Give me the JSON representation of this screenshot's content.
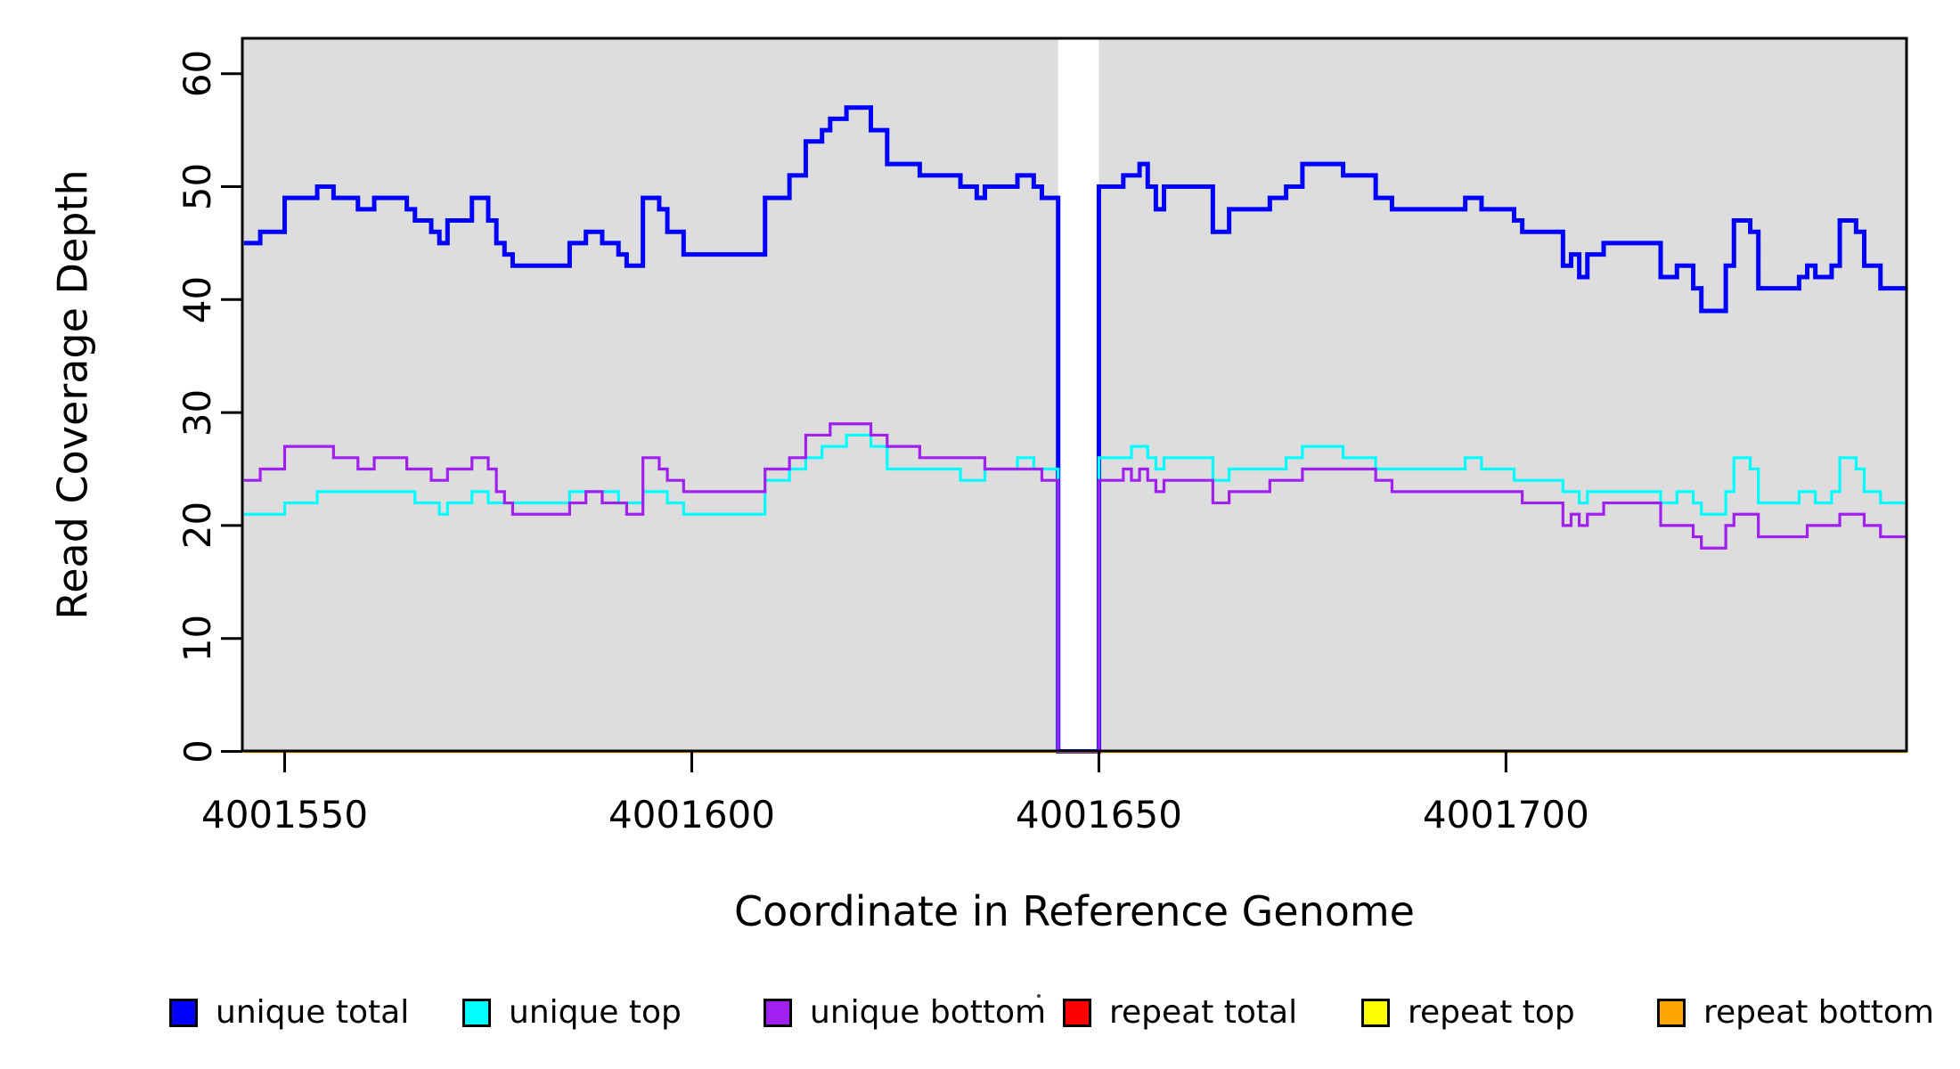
{
  "chart_data": {
    "type": "line",
    "subtype": "step-coverage",
    "xlabel": "Coordinate in Reference Genome",
    "ylabel": "Read Coverage Depth",
    "xlim": [
      4001544.8,
      4001749.2
    ],
    "ylim": [
      0,
      63.1
    ],
    "x_ticks": [
      4001550,
      4001600,
      4001650,
      4001700
    ],
    "y_ticks": [
      0,
      10,
      20,
      30,
      40,
      50,
      60
    ],
    "grid": false,
    "plot_bg": "#DDDDDD",
    "axis_color": "#000000",
    "gap_region": {
      "start": 4001645,
      "end": 4001650,
      "color": "#FFFFFF"
    },
    "legend_position": "bottom",
    "series": [
      {
        "name": "unique total",
        "color": "#0000FF",
        "line_width": 5,
        "points": [
          [
            4001545,
            45
          ],
          [
            4001547,
            46
          ],
          [
            4001550,
            49
          ],
          [
            4001554,
            50
          ],
          [
            4001556,
            49
          ],
          [
            4001559,
            48
          ],
          [
            4001561,
            49
          ],
          [
            4001565,
            48
          ],
          [
            4001566,
            47
          ],
          [
            4001568,
            46
          ],
          [
            4001569,
            45
          ],
          [
            4001570,
            47
          ],
          [
            4001573,
            49
          ],
          [
            4001575,
            47
          ],
          [
            4001576,
            45
          ],
          [
            4001577,
            44
          ],
          [
            4001578,
            43
          ],
          [
            4001585,
            45
          ],
          [
            4001587,
            46
          ],
          [
            4001589,
            45
          ],
          [
            4001591,
            44
          ],
          [
            4001592,
            43
          ],
          [
            4001594,
            49
          ],
          [
            4001596,
            48
          ],
          [
            4001597,
            46
          ],
          [
            4001599,
            44
          ],
          [
            4001609,
            49
          ],
          [
            4001612,
            51
          ],
          [
            4001614,
            54
          ],
          [
            4001616,
            55
          ],
          [
            4001617,
            56
          ],
          [
            4001619,
            57
          ],
          [
            4001622,
            55
          ],
          [
            4001624,
            52
          ],
          [
            4001628,
            51
          ],
          [
            4001633,
            50
          ],
          [
            4001635,
            49
          ],
          [
            4001636,
            50
          ],
          [
            4001640,
            51
          ],
          [
            4001642,
            50
          ],
          [
            4001643,
            49
          ],
          [
            4001645,
            0
          ],
          [
            4001650,
            50
          ],
          [
            4001653,
            51
          ],
          [
            4001655,
            52
          ],
          [
            4001656,
            50
          ],
          [
            4001657,
            48
          ],
          [
            4001658,
            50
          ],
          [
            4001664,
            46
          ],
          [
            4001666,
            48
          ],
          [
            4001671,
            49
          ],
          [
            4001673,
            50
          ],
          [
            4001675,
            52
          ],
          [
            4001680,
            51
          ],
          [
            4001684,
            49
          ],
          [
            4001686,
            48
          ],
          [
            4001695,
            49
          ],
          [
            4001697,
            48
          ],
          [
            4001701,
            47
          ],
          [
            4001702,
            46
          ],
          [
            4001707,
            43
          ],
          [
            4001708,
            44
          ],
          [
            4001709,
            42
          ],
          [
            4001710,
            44
          ],
          [
            4001712,
            45
          ],
          [
            4001719,
            42
          ],
          [
            4001721,
            43
          ],
          [
            4001723,
            41
          ],
          [
            4001724,
            39
          ],
          [
            4001727,
            43
          ],
          [
            4001728,
            47
          ],
          [
            4001730,
            46
          ],
          [
            4001731,
            41
          ],
          [
            4001736,
            42
          ],
          [
            4001737,
            43
          ],
          [
            4001738,
            42
          ],
          [
            4001740,
            43
          ],
          [
            4001741,
            47
          ],
          [
            4001743,
            46
          ],
          [
            4001744,
            43
          ],
          [
            4001746,
            41
          ]
        ]
      },
      {
        "name": "unique top",
        "color": "#00FFFF",
        "line_width": 3.2,
        "points": [
          [
            4001545,
            21
          ],
          [
            4001550,
            22
          ],
          [
            4001554,
            23
          ],
          [
            4001566,
            22
          ],
          [
            4001569,
            21
          ],
          [
            4001570,
            22
          ],
          [
            4001573,
            23
          ],
          [
            4001575,
            22
          ],
          [
            4001585,
            23
          ],
          [
            4001591,
            22
          ],
          [
            4001594,
            23
          ],
          [
            4001597,
            22
          ],
          [
            4001599,
            21
          ],
          [
            4001609,
            24
          ],
          [
            4001612,
            25
          ],
          [
            4001614,
            26
          ],
          [
            4001616,
            27
          ],
          [
            4001619,
            28
          ],
          [
            4001622,
            27
          ],
          [
            4001624,
            25
          ],
          [
            4001633,
            24
          ],
          [
            4001636,
            25
          ],
          [
            4001640,
            26
          ],
          [
            4001642,
            25
          ],
          [
            4001645,
            0
          ],
          [
            4001650,
            26
          ],
          [
            4001654,
            27
          ],
          [
            4001656,
            26
          ],
          [
            4001657,
            25
          ],
          [
            4001658,
            26
          ],
          [
            4001664,
            24
          ],
          [
            4001666,
            25
          ],
          [
            4001673,
            26
          ],
          [
            4001675,
            27
          ],
          [
            4001680,
            26
          ],
          [
            4001684,
            25
          ],
          [
            4001695,
            26
          ],
          [
            4001697,
            25
          ],
          [
            4001701,
            24
          ],
          [
            4001707,
            23
          ],
          [
            4001709,
            22
          ],
          [
            4001710,
            23
          ],
          [
            4001719,
            22
          ],
          [
            4001721,
            23
          ],
          [
            4001723,
            22
          ],
          [
            4001724,
            21
          ],
          [
            4001727,
            23
          ],
          [
            4001728,
            26
          ],
          [
            4001730,
            25
          ],
          [
            4001731,
            22
          ],
          [
            4001736,
            23
          ],
          [
            4001738,
            22
          ],
          [
            4001740,
            23
          ],
          [
            4001741,
            26
          ],
          [
            4001743,
            25
          ],
          [
            4001744,
            23
          ],
          [
            4001746,
            22
          ]
        ]
      },
      {
        "name": "unique bottom",
        "color": "#A020F0",
        "line_width": 3.2,
        "points": [
          [
            4001545,
            24
          ],
          [
            4001547,
            25
          ],
          [
            4001550,
            27
          ],
          [
            4001556,
            26
          ],
          [
            4001559,
            25
          ],
          [
            4001561,
            26
          ],
          [
            4001565,
            25
          ],
          [
            4001568,
            24
          ],
          [
            4001570,
            25
          ],
          [
            4001573,
            26
          ],
          [
            4001575,
            25
          ],
          [
            4001576,
            23
          ],
          [
            4001577,
            22
          ],
          [
            4001578,
            21
          ],
          [
            4001585,
            22
          ],
          [
            4001587,
            23
          ],
          [
            4001589,
            22
          ],
          [
            4001592,
            21
          ],
          [
            4001594,
            26
          ],
          [
            4001596,
            25
          ],
          [
            4001597,
            24
          ],
          [
            4001599,
            23
          ],
          [
            4001609,
            25
          ],
          [
            4001612,
            26
          ],
          [
            4001614,
            28
          ],
          [
            4001617,
            29
          ],
          [
            4001622,
            28
          ],
          [
            4001624,
            27
          ],
          [
            4001628,
            26
          ],
          [
            4001636,
            25
          ],
          [
            4001643,
            24
          ],
          [
            4001645,
            0
          ],
          [
            4001650,
            24
          ],
          [
            4001653,
            25
          ],
          [
            4001654,
            24
          ],
          [
            4001655,
            25
          ],
          [
            4001656,
            24
          ],
          [
            4001657,
            23
          ],
          [
            4001658,
            24
          ],
          [
            4001664,
            22
          ],
          [
            4001666,
            23
          ],
          [
            4001671,
            24
          ],
          [
            4001675,
            25
          ],
          [
            4001684,
            24
          ],
          [
            4001686,
            23
          ],
          [
            4001702,
            22
          ],
          [
            4001707,
            20
          ],
          [
            4001708,
            21
          ],
          [
            4001709,
            20
          ],
          [
            4001710,
            21
          ],
          [
            4001712,
            22
          ],
          [
            4001719,
            20
          ],
          [
            4001723,
            19
          ],
          [
            4001724,
            18
          ],
          [
            4001727,
            20
          ],
          [
            4001728,
            21
          ],
          [
            4001731,
            19
          ],
          [
            4001737,
            20
          ],
          [
            4001741,
            21
          ],
          [
            4001744,
            20
          ],
          [
            4001746,
            19
          ]
        ]
      },
      {
        "name": "repeat total",
        "color": "#FF0000",
        "line_width": 3,
        "points": [
          [
            4001545,
            0
          ]
        ]
      },
      {
        "name": "repeat top",
        "color": "#FFFF00",
        "line_width": 3,
        "points": [
          [
            4001545,
            0
          ]
        ]
      },
      {
        "name": "repeat bottom",
        "color": "#FFA500",
        "line_width": 3.6,
        "points": [
          [
            4001545,
            0
          ]
        ]
      }
    ],
    "legend": [
      {
        "label": "unique total",
        "color": "#0000FF"
      },
      {
        "label": "unique top",
        "color": "#00FFFF"
      },
      {
        "label": "unique bottom",
        "color": "#A020F0"
      },
      {
        "label": "repeat total",
        "color": "#FF0000"
      },
      {
        "label": "repeat top",
        "color": "#FFFF00"
      },
      {
        "label": "repeat bottom",
        "color": "#FFA500"
      }
    ]
  }
}
